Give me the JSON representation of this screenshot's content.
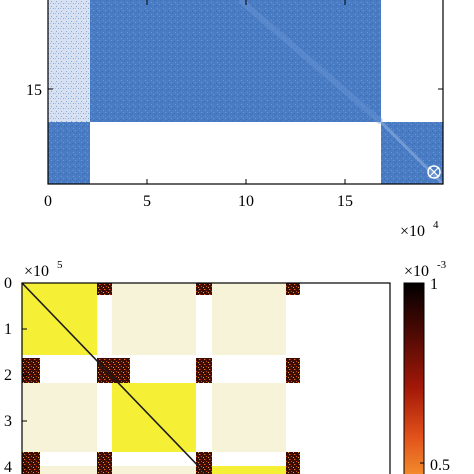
{
  "colors": {
    "spy_blue": "#4a7cc4",
    "spy_blue_light": "#c9d6ec",
    "heat_dark": "#2a0a04",
    "heat_red": "#b01e10",
    "heat_yellow": "#f5ef35",
    "heat_cream": "#f6f3d9",
    "white": "#ffffff"
  },
  "chart_data": [
    {
      "type": "heatmap",
      "name": "sparsity-pattern",
      "xlabel": "",
      "ylabel": "",
      "x_ticks": [
        "0",
        "5",
        "10",
        "15"
      ],
      "y_ticks": [
        "15"
      ],
      "x_exponent": {
        "base": "×10",
        "power": "4"
      },
      "blocks": [
        {
          "rows": "11-18",
          "cols": "0-2",
          "fill": "dense"
        },
        {
          "rows": "11-18",
          "cols": "2-17",
          "fill": "dense"
        },
        {
          "rows": "18-20",
          "cols": "0-2",
          "fill": "dense"
        },
        {
          "rows": "18-20",
          "cols": "17-20",
          "fill": "dense"
        }
      ]
    },
    {
      "type": "heatmap",
      "name": "density-map",
      "xlabel": "",
      "ylabel": "",
      "y_ticks": [
        "0",
        "1",
        "2",
        "3",
        "4"
      ],
      "y_exponent": {
        "base": "×10",
        "power": "5"
      },
      "colorbar": {
        "ticks": [
          "1",
          "0.5"
        ],
        "exponent": {
          "base": "×10",
          "power": "-3"
        }
      },
      "blocks_rows": [
        [
          0,
          0.8
        ],
        [
          1,
          0.1,
          0.9,
          0.1,
          0.1,
          0.9
        ],
        [
          0,
          0.9,
          0.1,
          0.9,
          0.9,
          0.1
        ]
      ]
    }
  ],
  "text": {
    "top_x_tick_0": "0",
    "top_x_tick_5": "5",
    "top_x_tick_10": "10",
    "top_x_tick_15": "15",
    "top_y_tick_15": "15",
    "top_x_exp_base": "×10",
    "top_x_exp_power": "4",
    "bot_y_tick_0": "0",
    "bot_y_tick_1": "1",
    "bot_y_tick_2": "2",
    "bot_y_tick_3": "3",
    "bot_y_tick_4": "4",
    "bot_y_exp_base": "×10",
    "bot_y_exp_power": "5",
    "cbar_exp_base": "×10",
    "cbar_exp_power": "-3",
    "cbar_tick_1": "1",
    "cbar_tick_05": "0.5"
  }
}
